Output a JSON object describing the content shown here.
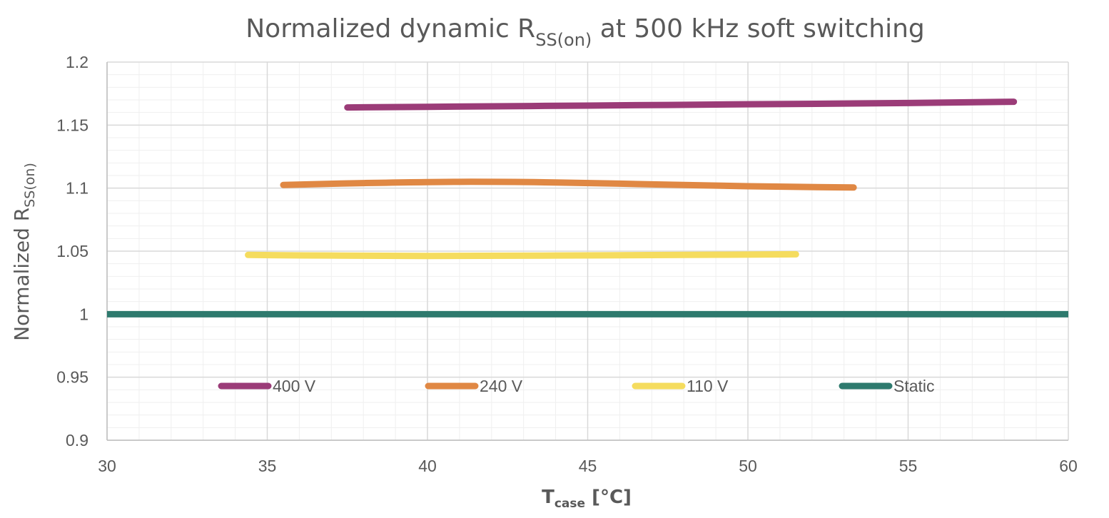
{
  "chart_data": {
    "type": "line",
    "title": {
      "main": "Normalized dynamic R",
      "sub": "SS(on)",
      "rest": " at 500 kHz soft switching"
    },
    "xlabel": {
      "main": "T",
      "sub": "case",
      "rest": " [°C]"
    },
    "ylabel": {
      "main": "Normalized R",
      "sub": "SS(on)"
    },
    "xlim": [
      30,
      60
    ],
    "ylim": [
      0.9,
      1.2
    ],
    "x_ticks": [
      30,
      35,
      40,
      45,
      50,
      55,
      60
    ],
    "y_ticks": [
      {
        "value": 0.9,
        "label": "0.9"
      },
      {
        "value": 0.95,
        "label": "0.95"
      },
      {
        "value": 1.0,
        "label": "1"
      },
      {
        "value": 1.05,
        "label": "1.05"
      },
      {
        "value": 1.1,
        "label": "1.1"
      },
      {
        "value": 1.15,
        "label": "1.15"
      },
      {
        "value": 1.2,
        "label": "1.2"
      }
    ],
    "grid": true,
    "legend_position": "bottom-inside",
    "series": [
      {
        "name": "400 V",
        "color": "#9b3c78",
        "x": [
          37.5,
          40,
          45,
          50,
          55,
          58.3
        ],
        "y": [
          1.164,
          1.1645,
          1.1655,
          1.1665,
          1.1675,
          1.1685
        ]
      },
      {
        "name": "240 V",
        "color": "#e08844",
        "x": [
          35.5,
          38,
          41,
          44,
          47,
          50,
          53.3
        ],
        "y": [
          1.1025,
          1.104,
          1.105,
          1.1045,
          1.103,
          1.1015,
          1.1005
        ]
      },
      {
        "name": "110 V",
        "color": "#f5dc5e",
        "x": [
          34.4,
          37,
          40,
          44,
          48,
          51.5
        ],
        "y": [
          1.047,
          1.0465,
          1.0462,
          1.0465,
          1.047,
          1.0475
        ]
      },
      {
        "name": "Static",
        "color": "#2e7a6e",
        "x": [
          30,
          60
        ],
        "y": [
          1.0,
          1.0
        ]
      }
    ]
  }
}
